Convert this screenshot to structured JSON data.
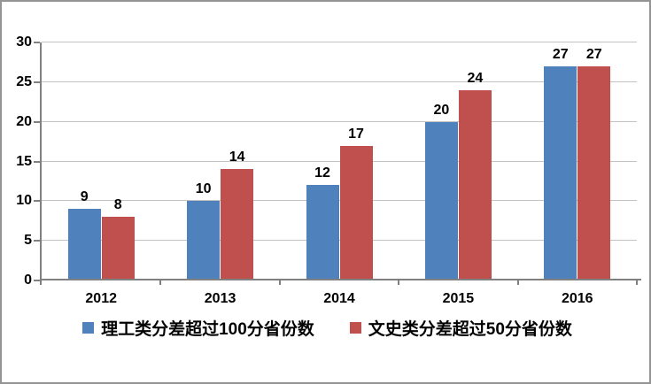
{
  "chart_data": {
    "type": "bar",
    "title": "",
    "xlabel": "",
    "ylabel": "",
    "categories": [
      "2012",
      "2013",
      "2014",
      "2015",
      "2016"
    ],
    "series": [
      {
        "name": "理工类分差超过100分省份数",
        "color": "#4F81BD",
        "values": [
          9,
          10,
          12,
          20,
          27
        ]
      },
      {
        "name": "文史类分差超过50分省份数",
        "color": "#C0504D",
        "values": [
          8,
          14,
          17,
          24,
          27
        ]
      }
    ],
    "ylim": [
      0,
      30
    ],
    "yticks": [
      0,
      5,
      10,
      15,
      20,
      25,
      30
    ],
    "grid": true,
    "data_labels": true,
    "legend_position": "bottom"
  },
  "colors": {
    "gridline": "#c3c3c3",
    "axis": "#808080",
    "border": "#949494",
    "text": "#000000"
  }
}
